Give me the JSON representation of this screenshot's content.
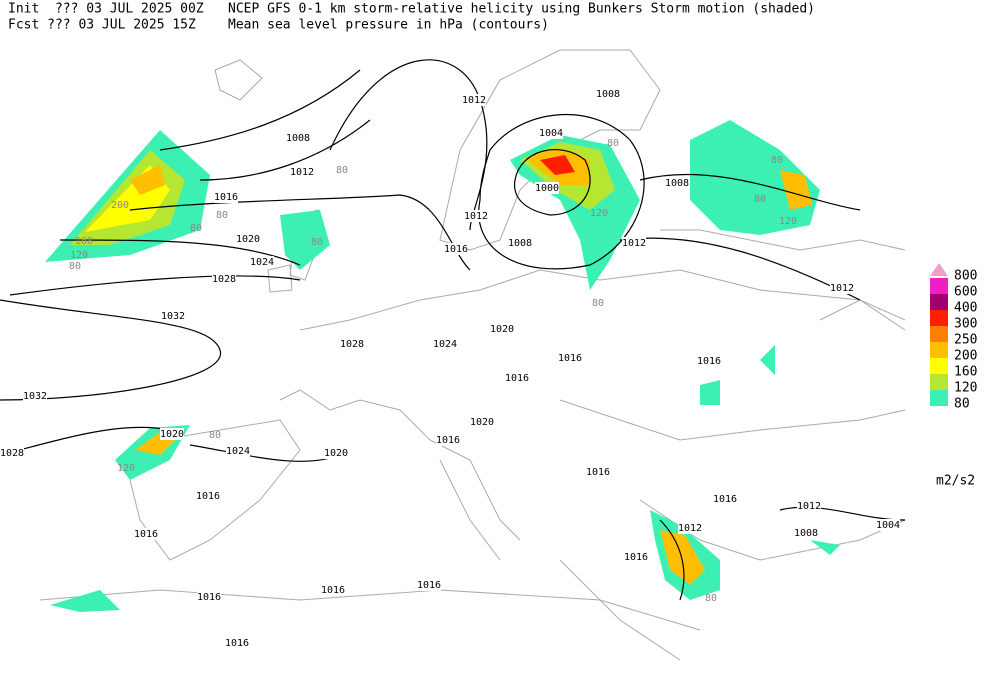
{
  "header": {
    "init": "Init  ??? 03 JUL 2025 00Z",
    "fcst": "Fcst ??? 03 JUL 2025 15Z",
    "title": "NCEP GFS 0-1 km storm-relative helicity using Bunkers Storm motion (shaded)",
    "subtitle": "Mean sea level pressure in hPa (contours)"
  },
  "legend": {
    "unit": "m2/s2",
    "items": [
      {
        "label": "800",
        "color": "#f0a0c8"
      },
      {
        "label": "600",
        "color": "#f020c0"
      },
      {
        "label": "400",
        "color": "#a0006e"
      },
      {
        "label": "300",
        "color": "#ff1e00"
      },
      {
        "label": "250",
        "color": "#ff8000"
      },
      {
        "label": "200",
        "color": "#ffbe00"
      },
      {
        "label": "160",
        "color": "#ffff00"
      },
      {
        "label": "120",
        "color": "#b4e632"
      },
      {
        "label": "80",
        "color": "#3cf0b4"
      }
    ]
  },
  "isobar_labels": [
    "1012",
    "1008",
    "1004",
    "1008",
    "1012",
    "1016",
    "1000",
    "1012",
    "1016",
    "1008",
    "1012",
    "1008",
    "1020",
    "1024",
    "1028",
    "1032",
    "1028",
    "1024",
    "1020",
    "1016",
    "1012",
    "1016",
    "1016",
    "1032",
    "1028",
    "1020",
    "1024",
    "1020",
    "1016",
    "1020",
    "1016",
    "1016",
    "1016",
    "1012",
    "1012",
    "1008",
    "1004",
    "1016",
    "1016",
    "1016",
    "1016",
    "1016",
    "1016"
  ],
  "helicity_labels": [
    "80",
    "80",
    "80",
    "80",
    "200",
    "160",
    "120",
    "80",
    "80",
    "80",
    "80",
    "120",
    "120",
    "80",
    "80",
    "120",
    "80"
  ]
}
